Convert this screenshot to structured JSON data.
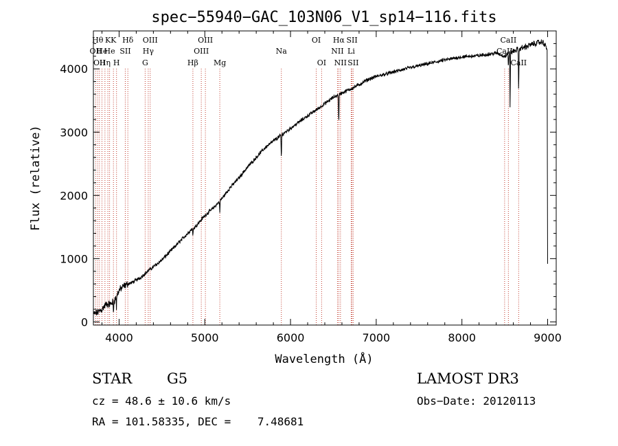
{
  "chart_data": {
    "type": "line",
    "title": "spec−55940−GAC_103N06_V1_sp14−116.fits",
    "xlabel": "Wavelength (Å)",
    "ylabel": "Flux (relative)",
    "xlim": [
      3700,
      9100
    ],
    "ylim": [
      -50,
      4600
    ],
    "xticks": [
      4000,
      5000,
      6000,
      7000,
      8000,
      9000
    ],
    "yticks": [
      0,
      1000,
      2000,
      3000,
      4000
    ],
    "grid": false,
    "series": [
      {
        "name": "flux",
        "x": [
          3700,
          3750,
          3800,
          3850,
          3900,
          3950,
          4000,
          4050,
          4100,
          4150,
          4200,
          4250,
          4300,
          4350,
          4400,
          4500,
          4600,
          4700,
          4800,
          4850,
          4900,
          5000,
          5100,
          5200,
          5300,
          5400,
          5500,
          5600,
          5700,
          5800,
          5900,
          6000,
          6100,
          6200,
          6300,
          6400,
          6500,
          6600,
          6700,
          6800,
          6900,
          7000,
          7200,
          7400,
          7600,
          7800,
          8000,
          8200,
          8400,
          8500,
          8600,
          8700,
          8800,
          8900,
          8950,
          9000
        ],
        "y": [
          120,
          150,
          200,
          280,
          280,
          350,
          500,
          560,
          600,
          620,
          660,
          700,
          760,
          820,
          870,
          980,
          1120,
          1260,
          1400,
          1470,
          1520,
          1680,
          1800,
          1950,
          2130,
          2280,
          2450,
          2600,
          2750,
          2860,
          2960,
          3060,
          3160,
          3260,
          3350,
          3450,
          3550,
          3620,
          3680,
          3750,
          3830,
          3880,
          3950,
          4020,
          4080,
          4140,
          4190,
          4210,
          4250,
          4200,
          4280,
          4330,
          4380,
          4420,
          4420,
          4300
        ]
      }
    ],
    "absorption_lines": [
      {
        "x": 3934,
        "depth": 200
      },
      {
        "x": 3969,
        "depth": 180
      },
      {
        "x": 4861,
        "depth": 150
      },
      {
        "x": 5175,
        "depth": 180
      },
      {
        "x": 5893,
        "depth": 400
      },
      {
        "x": 6563,
        "depth": 500
      },
      {
        "x": 8542,
        "depth": 200
      },
      {
        "x": 8562,
        "depth": 850
      },
      {
        "x": 8662,
        "depth": 700
      },
      {
        "x": 9000,
        "depth": 3400
      }
    ],
    "line_markers": [
      {
        "x": 3727,
        "label": "OII",
        "row": 2
      },
      {
        "x": 3750,
        "label": "Hθ",
        "row": 1
      },
      {
        "x": 3771,
        "label": "OII",
        "row": 3
      },
      {
        "x": 3800,
        "label": "He",
        "row": 2
      },
      {
        "x": 3835,
        "label": "Hη",
        "row": 3
      },
      {
        "x": 3869,
        "label": "K",
        "row": 1
      },
      {
        "x": 3889,
        "label": "He",
        "row": 2
      },
      {
        "x": 3934,
        "label": "K",
        "row": 1
      },
      {
        "x": 3970,
        "label": "H",
        "row": 3
      },
      {
        "x": 4072,
        "label": "SII",
        "row": 2
      },
      {
        "x": 4102,
        "label": "Hδ",
        "row": 1
      },
      {
        "x": 4304,
        "label": "G",
        "row": 3
      },
      {
        "x": 4340,
        "label": "Hγ",
        "row": 2
      },
      {
        "x": 4363,
        "label": "OIII",
        "row": 1
      },
      {
        "x": 4861,
        "label": "Hβ",
        "row": 3
      },
      {
        "x": 4959,
        "label": "OIII",
        "row": 2
      },
      {
        "x": 5007,
        "label": "OIII",
        "row": 1
      },
      {
        "x": 5175,
        "label": "Mg",
        "row": 3
      },
      {
        "x": 5893,
        "label": "Na",
        "row": 2
      },
      {
        "x": 6300,
        "label": "OI",
        "row": 1
      },
      {
        "x": 6363,
        "label": "OI",
        "row": 3
      },
      {
        "x": 6548,
        "label": "NII",
        "row": 2
      },
      {
        "x": 6563,
        "label": "Hα",
        "row": 1
      },
      {
        "x": 6583,
        "label": "NII",
        "row": 3
      },
      {
        "x": 6708,
        "label": "Li",
        "row": 2
      },
      {
        "x": 6717,
        "label": "SII",
        "row": 1
      },
      {
        "x": 6731,
        "label": "SII",
        "row": 3
      },
      {
        "x": 8498,
        "label": "CaII",
        "row": 2
      },
      {
        "x": 8542,
        "label": "CaII",
        "row": 1
      },
      {
        "x": 8662,
        "label": "CaII",
        "row": 3
      }
    ]
  },
  "info": {
    "class": "STAR",
    "subclass": "G5",
    "survey": "LAMOST DR3",
    "cz": "cz = 48.6 ± 10.6 km/s",
    "obs_date": "Obs−Date: 20120113",
    "coords": "RA = 101.58335, DEC =    7.48681"
  }
}
